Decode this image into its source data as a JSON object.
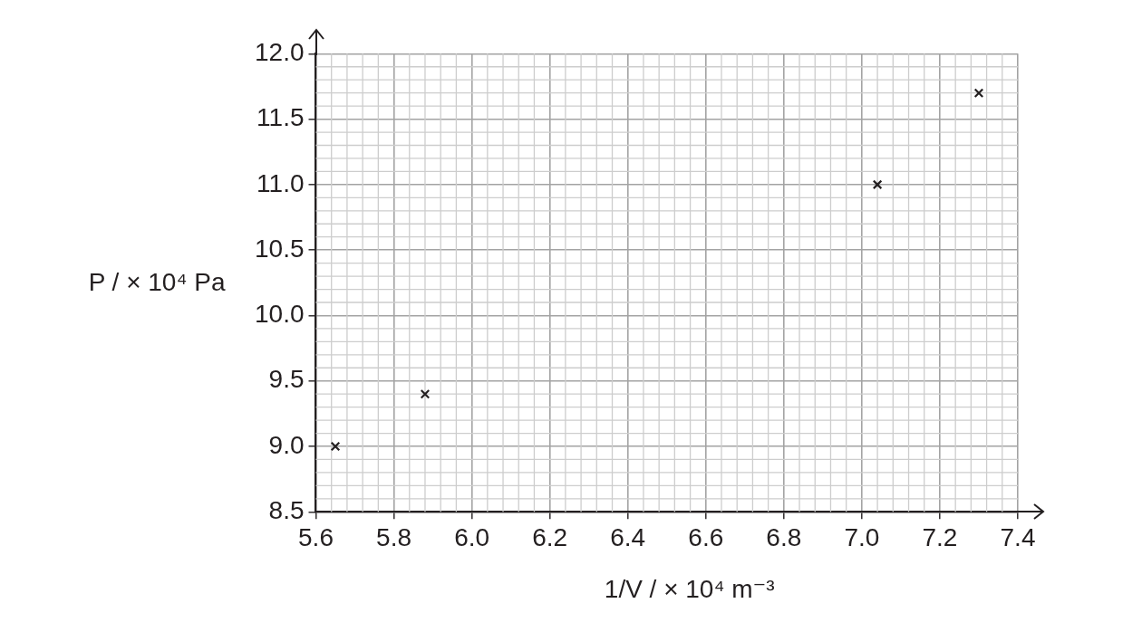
{
  "chart_data": {
    "type": "scatter",
    "xlabel": "1/V / × 10⁴ m⁻³",
    "ylabel": "P / × 10⁴ Pa",
    "x": [
      5.65,
      5.88,
      7.04,
      7.3
    ],
    "values": [
      9.0,
      9.4,
      11.0,
      11.7
    ],
    "color": "#231f20",
    "marker": "cross",
    "xlim": [
      5.6,
      7.4
    ],
    "xticks": [
      5.6,
      5.8,
      {
        "value": 6,
        "label": "6.0"
      },
      6.2,
      6.4,
      6.6,
      6.8,
      {
        "value": 7,
        "label": "7.0"
      },
      7.2,
      7.4
    ],
    "ylim": [
      8.5,
      12
    ],
    "yticks": [
      8.5,
      {
        "value": 9,
        "label": "9.0"
      },
      9.5,
      {
        "value": 10,
        "label": "10.0"
      },
      10.5,
      {
        "value": 11,
        "label": "11.0"
      },
      11.5,
      {
        "value": 12,
        "label": "12.0"
      }
    ],
    "grid": true
  }
}
